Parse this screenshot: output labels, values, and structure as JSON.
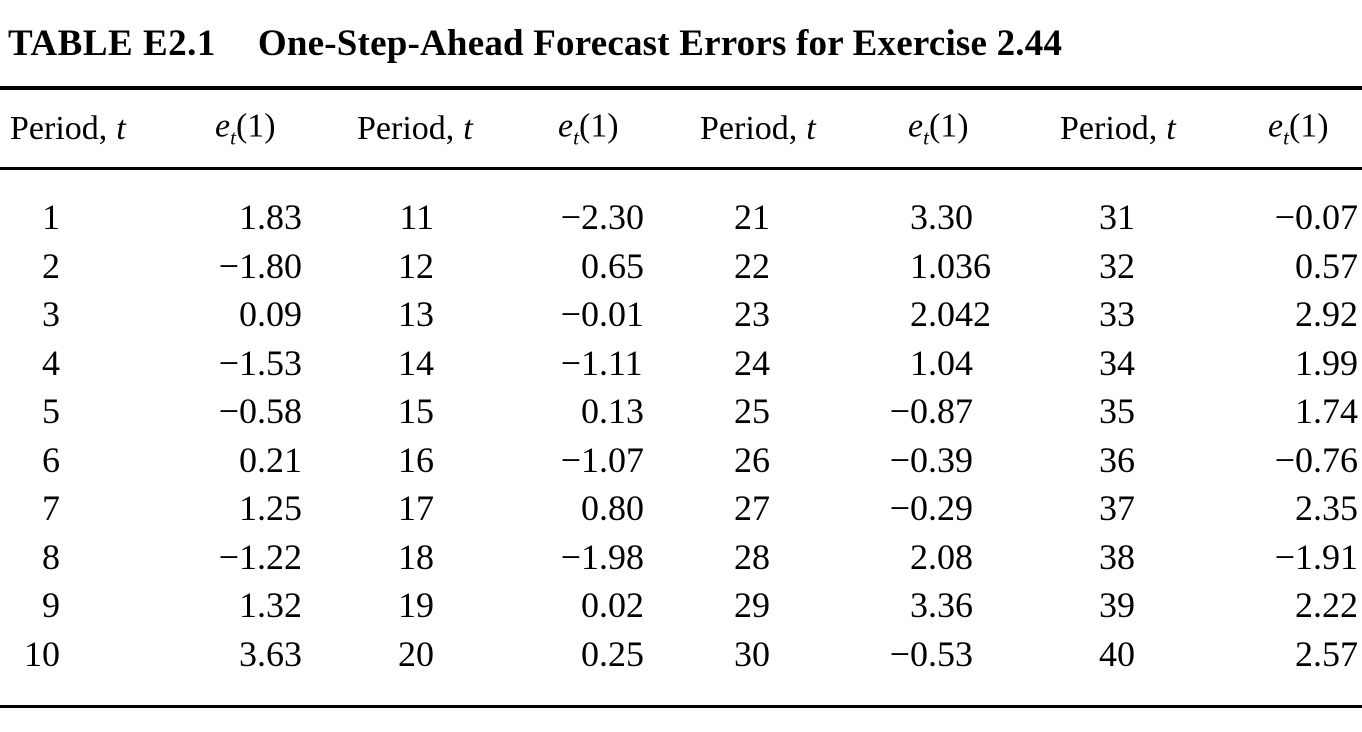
{
  "page": {
    "background_color": "#ffffff",
    "text_color": "#000000",
    "rule_color": "#000000"
  },
  "table": {
    "title_tag": "TABLE E2.1",
    "title_text": "One-Step-Ahead Forecast Errors for Exercise 2.44",
    "header": {
      "period_label": "Period,",
      "period_var": "t",
      "error_base": "e",
      "error_sub": "t",
      "error_arg": "(1)"
    },
    "groups": [
      {
        "periods": [
          "1",
          "2",
          "3",
          "4",
          "5",
          "6",
          "7",
          "8",
          "9",
          "10"
        ],
        "errors": [
          "1.83",
          "−1.80",
          "0.09",
          "−1.53",
          "−0.58",
          "0.21",
          "1.25",
          "−1.22",
          "1.32",
          "3.63"
        ]
      },
      {
        "periods": [
          "11",
          "12",
          "13",
          "14",
          "15",
          "16",
          "17",
          "18",
          "19",
          "20"
        ],
        "errors": [
          "−2.30",
          "0.65",
          "−0.01",
          "−1.11",
          "0.13",
          "−1.07",
          "0.80",
          "−1.98",
          "0.02",
          "0.25"
        ]
      },
      {
        "periods": [
          "21",
          "22",
          "23",
          "24",
          "25",
          "26",
          "27",
          "28",
          "29",
          "30"
        ],
        "errors": [
          "3.30",
          "1.036",
          "2.042",
          "1.04",
          "−0.87",
          "−0.39",
          "−0.29",
          "2.08",
          "3.36",
          "−0.53"
        ]
      },
      {
        "periods": [
          "31",
          "32",
          "33",
          "34",
          "35",
          "36",
          "37",
          "38",
          "39",
          "40"
        ],
        "errors": [
          "−0.07",
          "0.57",
          "2.92",
          "1.99",
          "1.74",
          "−0.76",
          "2.35",
          "−1.91",
          "2.22",
          "2.57"
        ]
      }
    ]
  }
}
